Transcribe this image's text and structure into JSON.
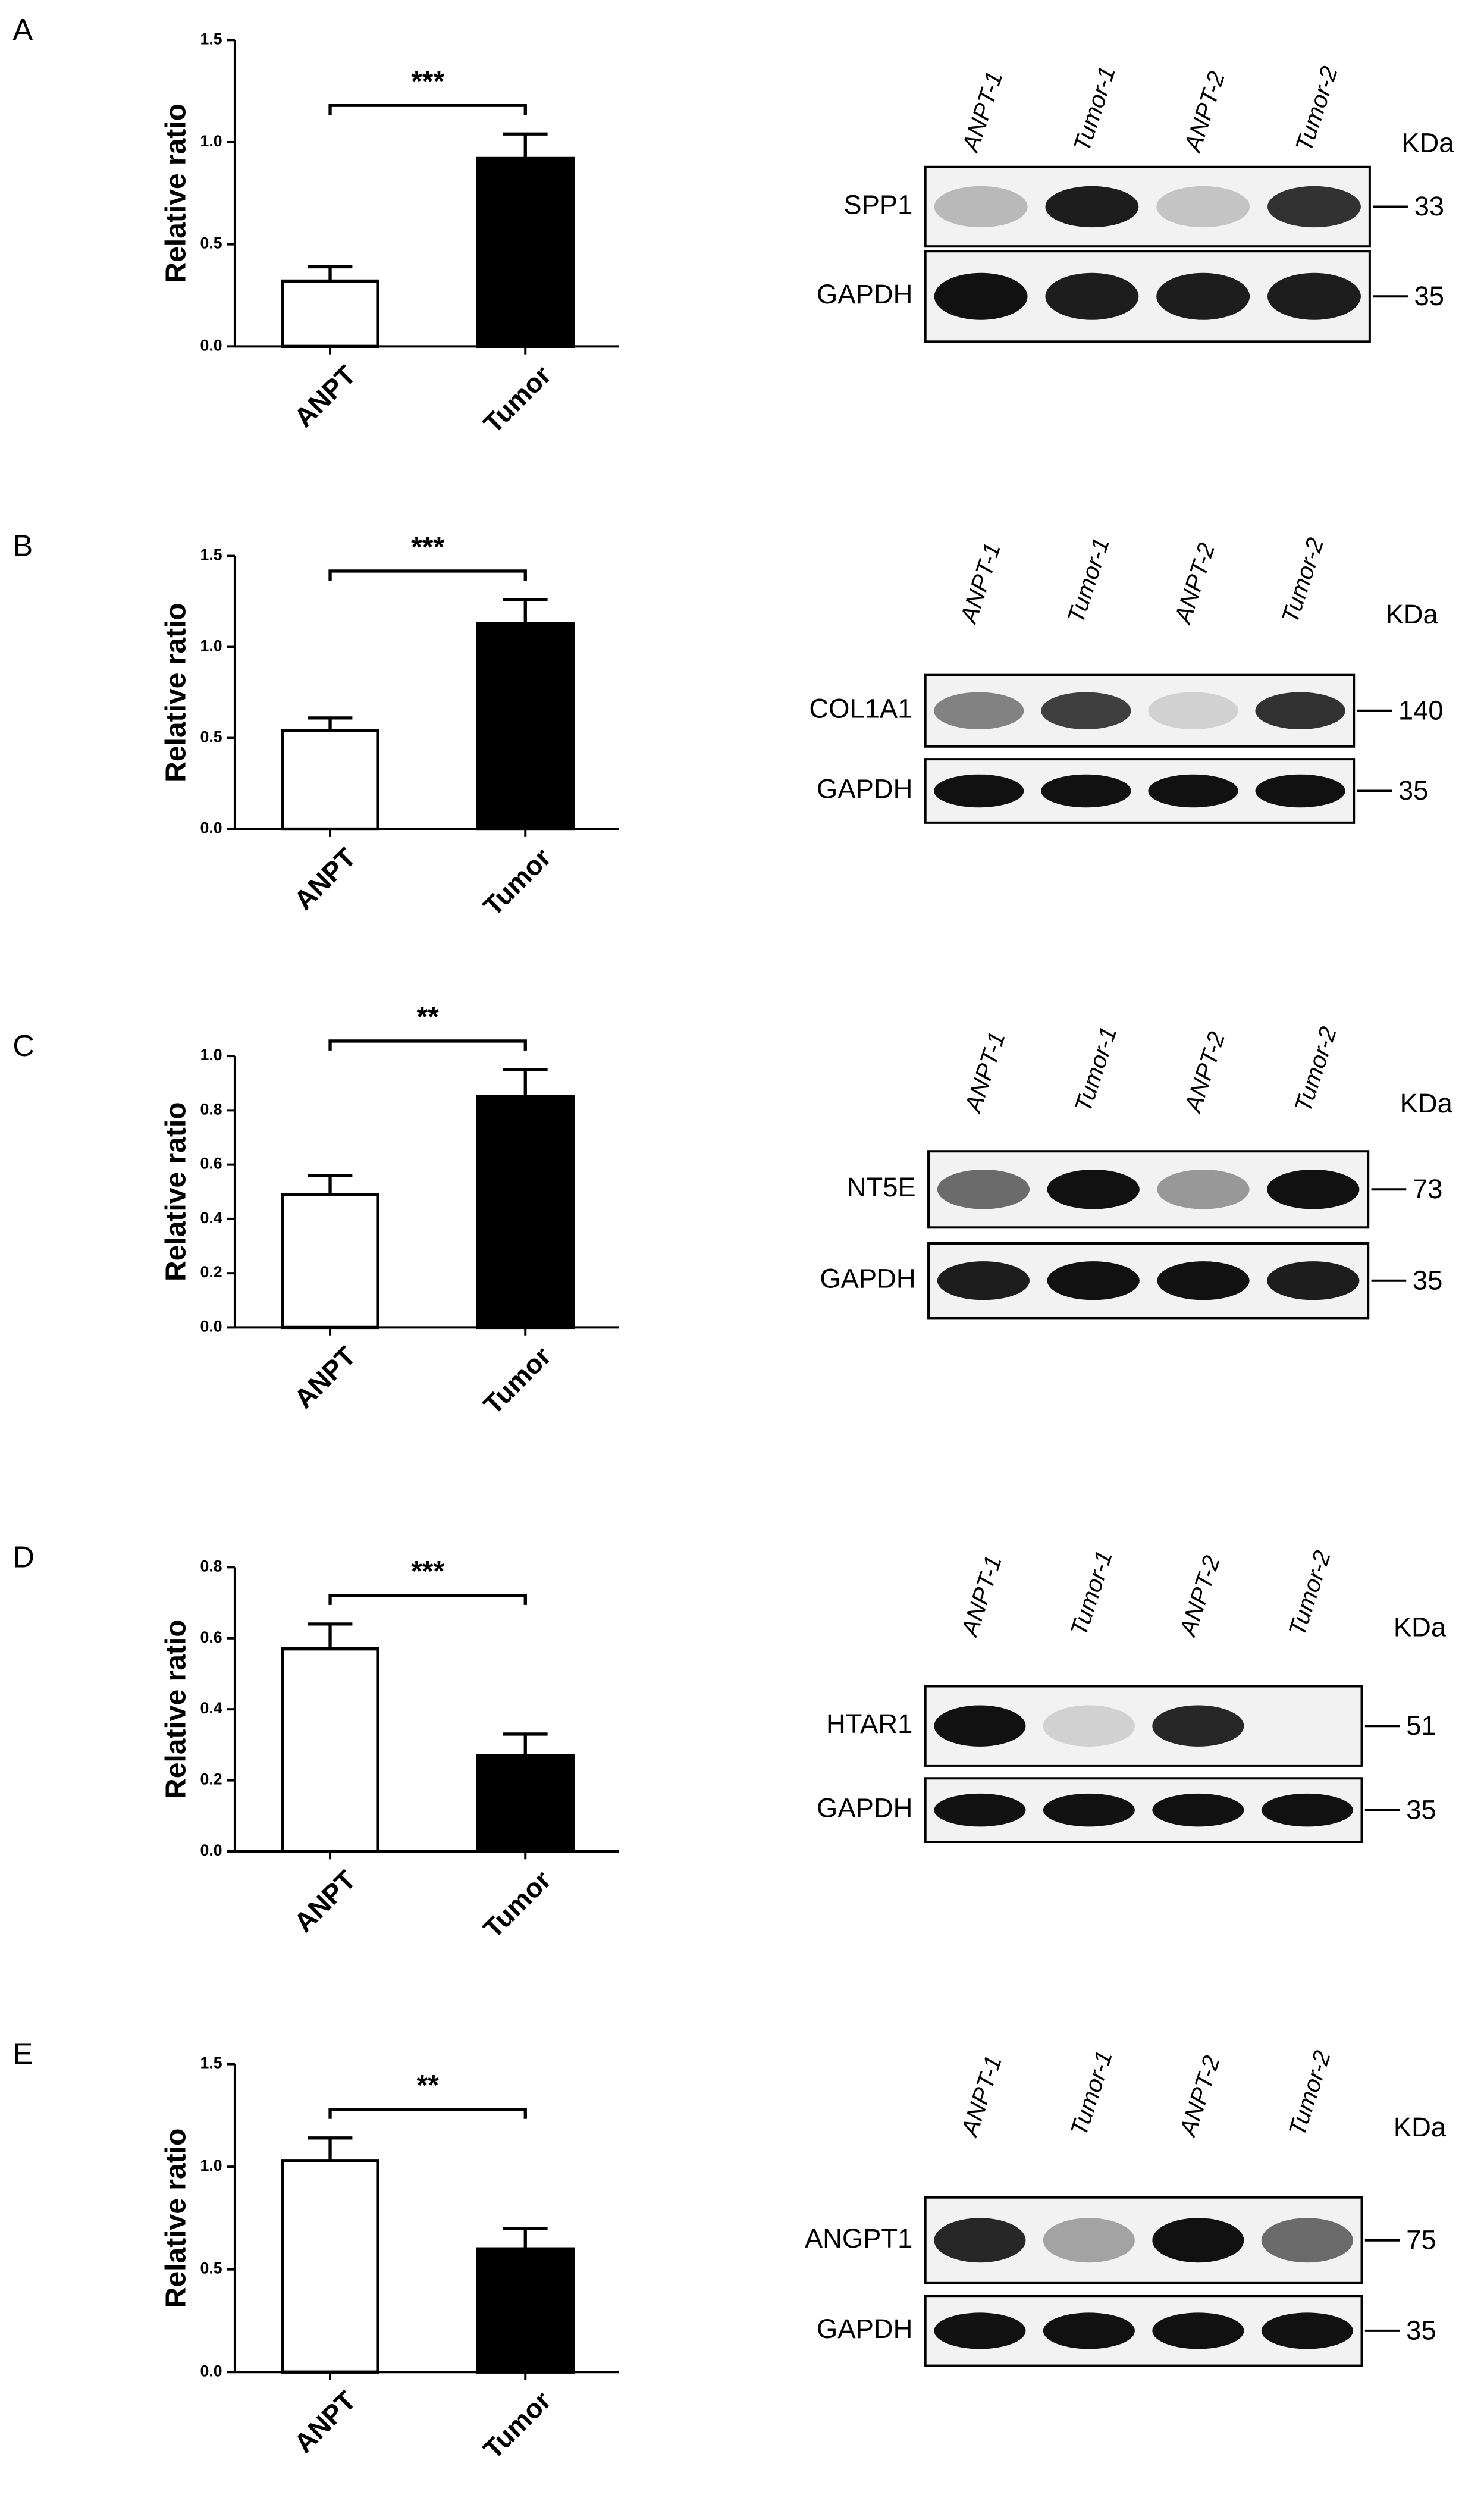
{
  "chart_data": [
    {
      "type": "bar",
      "panel": "A",
      "ylabel": "Relative ratio",
      "categories": [
        "ANPT",
        "Tumor"
      ],
      "values": [
        0.32,
        0.92
      ],
      "errors": [
        0.07,
        0.12
      ],
      "colors": [
        "#ffffff",
        "#000000"
      ],
      "ylim": [
        0,
        1.5
      ],
      "yticks": [
        {
          "value": 0,
          "label": "0.0"
        },
        0.5,
        {
          "value": 1,
          "label": "1.0"
        },
        1.5
      ],
      "annotation": "***"
    },
    {
      "type": "bar",
      "panel": "B",
      "ylabel": "Relative ratio",
      "categories": [
        "ANPT",
        "Tumor"
      ],
      "values": [
        0.54,
        1.13
      ],
      "errors": [
        0.07,
        0.13
      ],
      "colors": [
        "#ffffff",
        "#000000"
      ],
      "ylim": [
        0,
        1.5
      ],
      "yticks": [
        {
          "value": 0,
          "label": "0.0"
        },
        0.5,
        {
          "value": 1,
          "label": "1.0"
        },
        1.5
      ],
      "annotation": "***"
    },
    {
      "type": "bar",
      "panel": "C",
      "ylabel": "Relative ratio",
      "categories": [
        "ANPT",
        "Tumor"
      ],
      "values": [
        0.49,
        0.85
      ],
      "errors": [
        0.07,
        0.1
      ],
      "colors": [
        "#ffffff",
        "#000000"
      ],
      "ylim": [
        0,
        1
      ],
      "yticks": [
        {
          "value": 0,
          "label": "0.0"
        },
        0.2,
        0.4,
        0.6,
        0.8,
        {
          "value": 1,
          "label": "1.0"
        }
      ],
      "annotation": "**"
    },
    {
      "type": "bar",
      "panel": "D",
      "ylabel": "Relative ratio",
      "categories": [
        "ANPT",
        "Tumor"
      ],
      "values": [
        0.57,
        0.27
      ],
      "errors": [
        0.07,
        0.06
      ],
      "colors": [
        "#ffffff",
        "#000000"
      ],
      "ylim": [
        0,
        0.8
      ],
      "yticks": [
        {
          "value": 0,
          "label": "0.0"
        },
        0.2,
        0.4,
        0.6,
        0.8
      ],
      "annotation": "***"
    },
    {
      "type": "bar",
      "panel": "E",
      "ylabel": "Relative ratio",
      "categories": [
        "ANPT",
        "Tumor"
      ],
      "values": [
        1.03,
        0.6
      ],
      "errors": [
        0.11,
        0.1
      ],
      "colors": [
        "#ffffff",
        "#000000"
      ],
      "ylim": [
        0,
        1.5
      ],
      "yticks": [
        {
          "value": 0,
          "label": "0.0"
        },
        0.5,
        {
          "value": 1,
          "label": "1.0"
        },
        1.5
      ],
      "annotation": "**"
    }
  ],
  "blots": [
    {
      "lanes": [
        "ANPT-1",
        "Tumor-1",
        "ANPT-2",
        "Tumor-2"
      ],
      "unit": "KDa",
      "rows": [
        {
          "protein": "SPP1",
          "kda": "33"
        },
        {
          "protein": "GAPDH",
          "kda": "35"
        }
      ]
    },
    {
      "lanes": [
        "ANPT-1",
        "Tumor-1",
        "ANPT-2",
        "Tumor-2"
      ],
      "unit": "KDa",
      "rows": [
        {
          "protein": "COL1A1",
          "kda": "140"
        },
        {
          "protein": "GAPDH",
          "kda": "35"
        }
      ]
    },
    {
      "lanes": [
        "ANPT-1",
        "Tumor-1",
        "ANPT-2",
        "Tumor-2"
      ],
      "unit": "KDa",
      "rows": [
        {
          "protein": "NT5E",
          "kda": "73"
        },
        {
          "protein": "GAPDH",
          "kda": "35"
        }
      ]
    },
    {
      "lanes": [
        "ANPT-1",
        "Tumor-1",
        "ANPT-2",
        "Tumor-2"
      ],
      "unit": "KDa",
      "rows": [
        {
          "protein": "HTAR1",
          "kda": "51"
        },
        {
          "protein": "GAPDH",
          "kda": "35"
        }
      ]
    },
    {
      "lanes": [
        "ANPT-1",
        "Tumor-1",
        "ANPT-2",
        "Tumor-2"
      ],
      "unit": "KDa",
      "rows": [
        {
          "protein": "ANGPT1",
          "kda": "75"
        },
        {
          "protein": "GAPDH",
          "kda": "35"
        }
      ]
    }
  ]
}
